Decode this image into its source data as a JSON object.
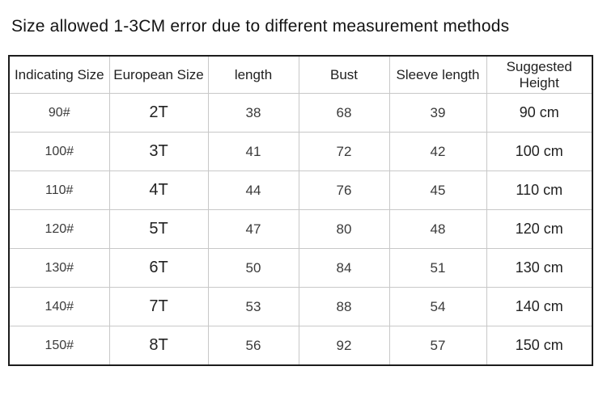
{
  "page": {
    "title": "Size allowed 1-3CM error due to different measurement methods"
  },
  "chart_data": {
    "type": "table",
    "title": "Size allowed 1-3CM error due to different measurement methods",
    "columns": [
      "Indicating Size",
      "European Size",
      "length",
      "Bust",
      "Sleeve length",
      "Suggested Height"
    ],
    "rows": [
      [
        "90#",
        "2T",
        "38",
        "68",
        "39",
        "90 cm"
      ],
      [
        "100#",
        "3T",
        "41",
        "72",
        "42",
        "100 cm"
      ],
      [
        "110#",
        "4T",
        "44",
        "76",
        "45",
        "110 cm"
      ],
      [
        "120#",
        "5T",
        "47",
        "80",
        "48",
        "120 cm"
      ],
      [
        "130#",
        "6T",
        "50",
        "84",
        "51",
        "130 cm"
      ],
      [
        "140#",
        "7T",
        "53",
        "88",
        "54",
        "140 cm"
      ],
      [
        "150#",
        "8T",
        "56",
        "92",
        "57",
        "150 cm"
      ]
    ]
  },
  "colors": {
    "background": "#ffffff",
    "outer_border": "#1c1c1c",
    "inner_grid": "#c8c8c8",
    "title_text": "#141414",
    "cell_text": "#2d2d2d"
  }
}
